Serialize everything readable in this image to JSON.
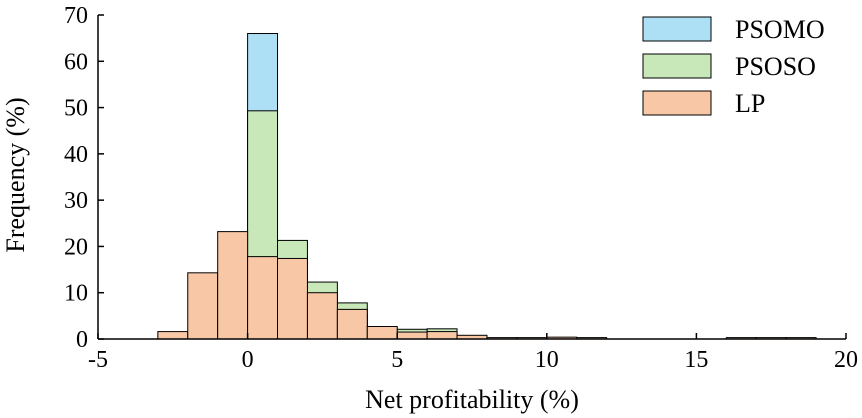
{
  "chart_data": {
    "type": "bar",
    "subtype": "overlapping-histogram",
    "title": "",
    "xlabel": "Net profitability (%)",
    "ylabel": "Frequency (%)",
    "xlim": [
      -5,
      20
    ],
    "ylim": [
      0,
      70
    ],
    "x_ticks": [
      -5,
      0,
      5,
      10,
      15,
      20
    ],
    "y_ticks": [
      0,
      10,
      20,
      30,
      40,
      50,
      60,
      70
    ],
    "bin_width": 1,
    "grid": false,
    "legend_position": "top-right",
    "series": [
      {
        "name": "PSOMO",
        "color": "#aee0f5",
        "bins": [
          {
            "x0": 0,
            "x1": 1,
            "value": 66.0
          },
          {
            "x0": 1,
            "x1": 2,
            "value": 18.0
          },
          {
            "x0": 2,
            "x1": 3,
            "value": 6.2
          },
          {
            "x0": 3,
            "x1": 4,
            "value": 5.3
          },
          {
            "x0": 4,
            "x1": 5,
            "value": 1.0
          },
          {
            "x0": 5,
            "x1": 6,
            "value": 0.8
          },
          {
            "x0": 6,
            "x1": 7,
            "value": 1.4
          }
        ]
      },
      {
        "name": "PSOSO",
        "color": "#c9e8b9",
        "bins": [
          {
            "x0": 0,
            "x1": 1,
            "value": 49.3
          },
          {
            "x0": 1,
            "x1": 2,
            "value": 21.3
          },
          {
            "x0": 2,
            "x1": 3,
            "value": 12.3
          },
          {
            "x0": 3,
            "x1": 4,
            "value": 7.8
          },
          {
            "x0": 4,
            "x1": 5,
            "value": 2.4
          },
          {
            "x0": 5,
            "x1": 6,
            "value": 2.1
          },
          {
            "x0": 6,
            "x1": 7,
            "value": 2.2
          },
          {
            "x0": 7,
            "x1": 8,
            "value": 0.6
          }
        ]
      },
      {
        "name": "LP",
        "color": "#f8c8a6",
        "bins": [
          {
            "x0": -3,
            "x1": -2,
            "value": 1.6
          },
          {
            "x0": -2,
            "x1": -1,
            "value": 14.3
          },
          {
            "x0": -1,
            "x1": 0,
            "value": 23.2
          },
          {
            "x0": 0,
            "x1": 1,
            "value": 17.8
          },
          {
            "x0": 1,
            "x1": 2,
            "value": 17.4
          },
          {
            "x0": 2,
            "x1": 3,
            "value": 10.0
          },
          {
            "x0": 3,
            "x1": 4,
            "value": 6.4
          },
          {
            "x0": 4,
            "x1": 5,
            "value": 2.7
          },
          {
            "x0": 5,
            "x1": 6,
            "value": 1.5
          },
          {
            "x0": 6,
            "x1": 7,
            "value": 1.6
          },
          {
            "x0": 7,
            "x1": 8,
            "value": 0.8
          },
          {
            "x0": 8,
            "x1": 9,
            "value": 0.3
          },
          {
            "x0": 9,
            "x1": 10,
            "value": 0.3
          },
          {
            "x0": 10,
            "x1": 11,
            "value": 0.4
          },
          {
            "x0": 11,
            "x1": 12,
            "value": 0.3
          },
          {
            "x0": 16,
            "x1": 17,
            "value": 0.3
          },
          {
            "x0": 17,
            "x1": 18,
            "value": 0.3
          },
          {
            "x0": 18,
            "x1": 19,
            "value": 0.3
          }
        ]
      }
    ]
  }
}
